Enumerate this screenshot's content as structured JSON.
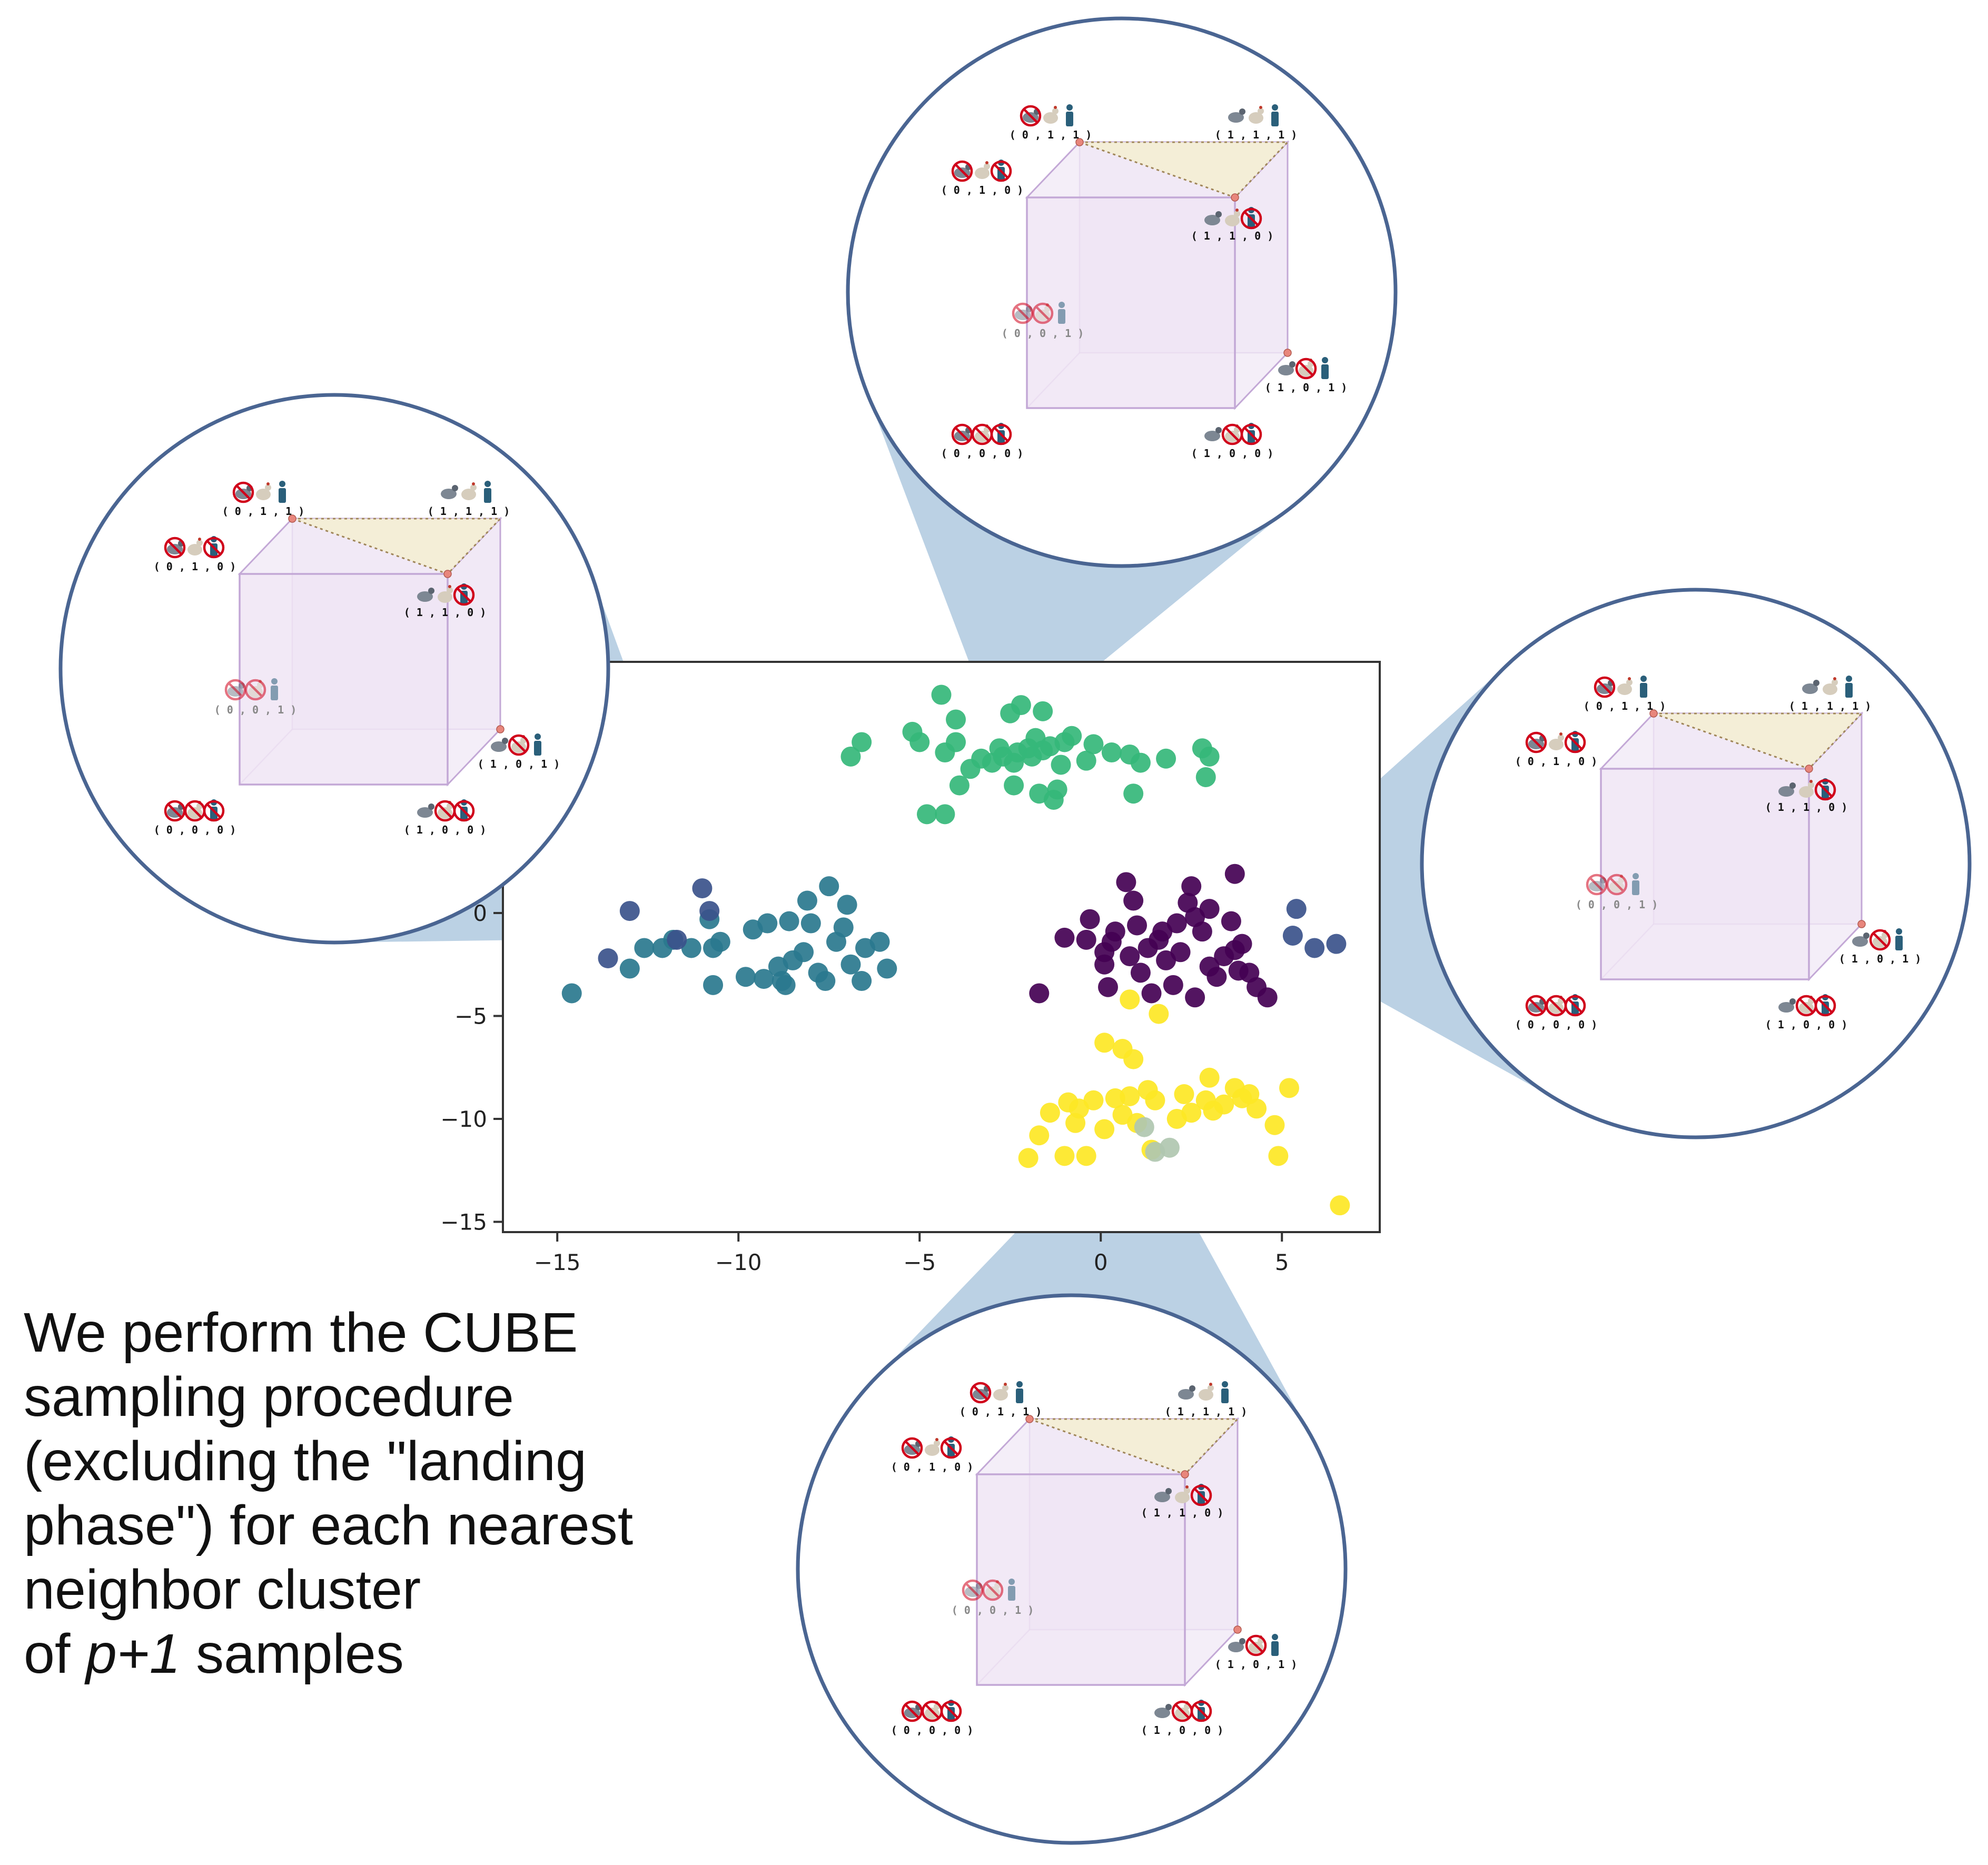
{
  "chart_data": {
    "type": "scatter",
    "title": "",
    "xlabel": "",
    "ylabel": "",
    "xlim": [
      -16.5,
      7.7
    ],
    "ylim": [
      -15.5,
      12.2
    ],
    "xticks": [
      -15,
      -10,
      -5,
      0,
      5
    ],
    "xtick_labels": [
      "−15",
      "−10",
      "−5",
      "0",
      "5"
    ],
    "yticks": [
      -15,
      -10,
      -5,
      0
    ],
    "ytick_labels": [
      "−15",
      "−10",
      "−5",
      "0"
    ],
    "grid": false,
    "legend": "none",
    "series": [
      {
        "color": "#2a788e",
        "points": [
          [
            -14.6,
            -3.9
          ],
          [
            -13,
            -2.7
          ],
          [
            -12.6,
            -1.7
          ],
          [
            -12.1,
            -1.7
          ],
          [
            -11.8,
            -1.3
          ],
          [
            -11.3,
            -1.7
          ],
          [
            -10.7,
            -3.5
          ],
          [
            -10.7,
            -1.7
          ],
          [
            -10.5,
            -1.4
          ],
          [
            -9.8,
            -3.1
          ],
          [
            -9.6,
            -0.8
          ],
          [
            -9.3,
            -3.2
          ],
          [
            -9.2,
            -0.5
          ],
          [
            -8.8,
            -3.3
          ],
          [
            -8.7,
            -3.5
          ],
          [
            -8.6,
            -0.4
          ],
          [
            -8.5,
            -2.3
          ],
          [
            -8.2,
            -1.9
          ],
          [
            -8.1,
            0.6
          ],
          [
            -8.0,
            -0.5
          ],
          [
            -7.8,
            -2.9
          ],
          [
            -7.6,
            -3.3
          ],
          [
            -7.5,
            1.3
          ],
          [
            -7.3,
            -1.4
          ],
          [
            -7.1,
            -0.7
          ],
          [
            -7.0,
            0.4
          ],
          [
            -6.9,
            -2.5
          ],
          [
            -6.6,
            -3.3
          ],
          [
            -6.5,
            -1.7
          ],
          [
            -6.1,
            -1.4
          ],
          [
            -5.9,
            -2.7
          ],
          [
            -10.8,
            -0.3
          ],
          [
            -8.9,
            -2.6
          ]
        ]
      },
      {
        "color": "#3b528b",
        "points": [
          [
            -13,
            0.1
          ],
          [
            -11,
            1.2
          ],
          [
            -10.8,
            0.1
          ],
          [
            -11.7,
            -1.3
          ],
          [
            -13.6,
            -2.2
          ],
          [
            6.5,
            -1.5
          ],
          [
            5.9,
            -1.7
          ],
          [
            5.3,
            -1.1
          ],
          [
            5.4,
            0.2
          ]
        ]
      },
      {
        "color": "#35b779",
        "points": [
          [
            -4.4,
            10.6
          ],
          [
            -4.0,
            9.4
          ],
          [
            -4.0,
            8.3
          ],
          [
            -4.3,
            7.8
          ],
          [
            -5.0,
            8.3
          ],
          [
            -5.2,
            8.8
          ],
          [
            -4.8,
            4.8
          ],
          [
            -4.3,
            4.8
          ],
          [
            -3.9,
            6.2
          ],
          [
            -3.6,
            7.0
          ],
          [
            -3.3,
            7.5
          ],
          [
            -3.0,
            7.3
          ],
          [
            -2.7,
            7.6
          ],
          [
            -2.4,
            7.3
          ],
          [
            -2.3,
            7.8
          ],
          [
            -2.0,
            8.0
          ],
          [
            -1.9,
            7.6
          ],
          [
            -1.6,
            7.9
          ],
          [
            -1.4,
            8.1
          ],
          [
            -1.0,
            8.3
          ],
          [
            -1.2,
            6.0
          ],
          [
            -1.3,
            5.5
          ],
          [
            -1.7,
            5.8
          ],
          [
            -0.4,
            7.4
          ],
          [
            -0.2,
            8.2
          ],
          [
            0.3,
            7.8
          ],
          [
            0.8,
            7.7
          ],
          [
            1.1,
            7.3
          ],
          [
            1.8,
            7.5
          ],
          [
            2.8,
            8.0
          ],
          [
            3.0,
            7.6
          ],
          [
            2.9,
            6.6
          ],
          [
            0.9,
            5.8
          ],
          [
            -1.1,
            7.2
          ],
          [
            -1.8,
            8.5
          ],
          [
            -2.5,
            9.7
          ],
          [
            -6.6,
            8.3
          ],
          [
            -6.9,
            7.6
          ],
          [
            -2.8,
            8.0
          ],
          [
            -2.4,
            6.2
          ],
          [
            -2.2,
            10.1
          ],
          [
            -1.6,
            9.8
          ],
          [
            -0.8,
            8.6
          ]
        ]
      },
      {
        "color": "#440154",
        "points": [
          [
            -1.0,
            -1.2
          ],
          [
            -0.4,
            -1.3
          ],
          [
            0.1,
            -1.9
          ],
          [
            0.2,
            -3.6
          ],
          [
            -1.7,
            -3.9
          ],
          [
            -0.3,
            -0.3
          ],
          [
            0.4,
            -0.9
          ],
          [
            0.7,
            1.5
          ],
          [
            0.9,
            0.6
          ],
          [
            1.0,
            -0.6
          ],
          [
            1.3,
            -1.7
          ],
          [
            1.4,
            -3.9
          ],
          [
            1.7,
            -0.9
          ],
          [
            1.8,
            -2.3
          ],
          [
            2.2,
            -1.9
          ],
          [
            2.4,
            0.5
          ],
          [
            2.6,
            -0.2
          ],
          [
            2.8,
            -0.9
          ],
          [
            3.0,
            -2.6
          ],
          [
            3.2,
            -3.1
          ],
          [
            3.4,
            -2.1
          ],
          [
            3.6,
            -0.4
          ],
          [
            3.7,
            -1.8
          ],
          [
            3.8,
            -2.8
          ],
          [
            3.9,
            -1.5
          ],
          [
            4.1,
            -2.9
          ],
          [
            4.3,
            -3.6
          ],
          [
            4.6,
            -4.1
          ],
          [
            2.0,
            -3.5
          ],
          [
            2.6,
            -4.1
          ],
          [
            1.1,
            -2.9
          ],
          [
            0.1,
            -2.5
          ],
          [
            0.8,
            -2.1
          ],
          [
            2.1,
            -0.5
          ],
          [
            2.5,
            1.3
          ],
          [
            3.0,
            0.2
          ],
          [
            3.7,
            1.9
          ],
          [
            1.6,
            -1.3
          ],
          [
            0.3,
            -1.4
          ]
        ]
      },
      {
        "color": "#fde725",
        "points": [
          [
            0.1,
            -6.3
          ],
          [
            0.6,
            -6.6
          ],
          [
            0.9,
            -7.1
          ],
          [
            1.3,
            -8.6
          ],
          [
            1.5,
            -9.1
          ],
          [
            0.8,
            -8.9
          ],
          [
            0.4,
            -9.0
          ],
          [
            -0.2,
            -9.1
          ],
          [
            -0.6,
            -9.5
          ],
          [
            -0.9,
            -9.2
          ],
          [
            -1.4,
            -9.7
          ],
          [
            -1.7,
            -10.8
          ],
          [
            -0.7,
            -10.2
          ],
          [
            0.1,
            -10.5
          ],
          [
            0.6,
            -9.8
          ],
          [
            1.0,
            -10.2
          ],
          [
            2.3,
            -8.8
          ],
          [
            2.5,
            -9.7
          ],
          [
            2.9,
            -9.1
          ],
          [
            3.1,
            -9.6
          ],
          [
            3.4,
            -9.3
          ],
          [
            3.7,
            -8.5
          ],
          [
            3.9,
            -9.0
          ],
          [
            4.3,
            -9.5
          ],
          [
            4.8,
            -10.3
          ],
          [
            5.2,
            -8.5
          ],
          [
            4.9,
            -11.8
          ],
          [
            6.6,
            -14.2
          ],
          [
            -1.0,
            -11.8
          ],
          [
            -0.4,
            -11.8
          ],
          [
            -2.0,
            -11.9
          ],
          [
            1.4,
            -11.5
          ],
          [
            3.0,
            -8.0
          ],
          [
            2.1,
            -10.0
          ],
          [
            4.1,
            -8.8
          ],
          [
            0.8,
            -4.2
          ],
          [
            1.6,
            -4.9
          ]
        ]
      },
      {
        "color": "#b0c7b0",
        "points": [
          [
            1.2,
            -10.4
          ],
          [
            1.5,
            -11.6
          ],
          [
            1.9,
            -11.4
          ]
        ]
      }
    ]
  },
  "zoom_cubes": [
    {
      "corners": [
        {
          "bits": [
            0,
            0,
            1
          ],
          "label": "( 0 , 0 , 1 )",
          "excluded": [
            1,
            2
          ]
        },
        {
          "bits": [
            0,
            1,
            1
          ],
          "label": "( 0 , 1 , 1 )",
          "excluded": [
            1
          ]
        },
        {
          "bits": [
            1,
            1,
            1
          ],
          "label": "( 1 , 1 , 1 )",
          "excluded": []
        },
        {
          "bits": [
            0,
            1,
            0
          ],
          "label": "( 0 , 1 , 0 )",
          "excluded": [
            1,
            3
          ]
        },
        {
          "bits": [
            1,
            1,
            0
          ],
          "label": "( 1 , 1 , 0 )",
          "excluded": [
            3
          ]
        },
        {
          "bits": [
            1,
            0,
            1
          ],
          "label": "( 1 , 0 , 1 )",
          "excluded": [
            2
          ]
        },
        {
          "bits": [
            0,
            0,
            0
          ],
          "label": "( 0 , 0 , 0 )",
          "excluded": [
            1,
            2,
            3
          ]
        },
        {
          "bits": [
            1,
            0,
            0
          ],
          "label": "( 1 , 0 , 0 )",
          "excluded": [
            2,
            3
          ]
        }
      ]
    },
    {
      "corners": [
        {
          "bits": [
            0,
            0,
            1
          ],
          "label": "( 0 , 0 , 1 )",
          "excluded": [
            1,
            2
          ]
        },
        {
          "bits": [
            0,
            1,
            1
          ],
          "label": "( 0 , 1 , 1 )",
          "excluded": [
            1
          ]
        },
        {
          "bits": [
            1,
            1,
            1
          ],
          "label": "( 1 , 1 , 1 )",
          "excluded": []
        },
        {
          "bits": [
            0,
            1,
            0
          ],
          "label": "( 0 , 1 , 0 )",
          "excluded": [
            1,
            3
          ]
        },
        {
          "bits": [
            1,
            1,
            0
          ],
          "label": "( 1 , 1 , 0 )",
          "excluded": [
            3
          ]
        },
        {
          "bits": [
            1,
            0,
            1
          ],
          "label": "( 1 , 0 , 1 )",
          "excluded": [
            2
          ]
        },
        {
          "bits": [
            0,
            0,
            0
          ],
          "label": "( 0 , 0 , 0 )",
          "excluded": [
            1,
            2,
            3
          ]
        },
        {
          "bits": [
            1,
            0,
            0
          ],
          "label": "( 1 , 0 , 0 )",
          "excluded": [
            2,
            3
          ]
        }
      ]
    },
    {
      "corners": [
        {
          "bits": [
            0,
            0,
            1
          ],
          "label": "( 0 , 0 , 1 )",
          "excluded": [
            1,
            2
          ]
        },
        {
          "bits": [
            0,
            1,
            1
          ],
          "label": "( 0 , 1 , 1 )",
          "excluded": [
            1
          ]
        },
        {
          "bits": [
            1,
            1,
            1
          ],
          "label": "( 1 , 1 , 1 )",
          "excluded": []
        },
        {
          "bits": [
            0,
            1,
            0
          ],
          "label": "( 0 , 1 , 0 )",
          "excluded": [
            1,
            3
          ]
        },
        {
          "bits": [
            1,
            1,
            0
          ],
          "label": "( 1 , 1 , 0 )",
          "excluded": [
            3
          ]
        },
        {
          "bits": [
            1,
            0,
            1
          ],
          "label": "( 1 , 0 , 1 )",
          "excluded": [
            2
          ]
        },
        {
          "bits": [
            0,
            0,
            0
          ],
          "label": "( 0 , 0 , 0 )",
          "excluded": [
            1,
            2,
            3
          ]
        },
        {
          "bits": [
            1,
            0,
            0
          ],
          "label": "( 1 , 0 , 0 )",
          "excluded": [
            2,
            3
          ]
        }
      ]
    },
    {
      "corners": [
        {
          "bits": [
            0,
            0,
            1
          ],
          "label": "( 0 , 0 , 1 )",
          "excluded": [
            1,
            2
          ]
        },
        {
          "bits": [
            0,
            1,
            1
          ],
          "label": "( 0 , 1 , 1 )",
          "excluded": [
            1
          ]
        },
        {
          "bits": [
            1,
            1,
            1
          ],
          "label": "( 1 , 1 , 1 )",
          "excluded": []
        },
        {
          "bits": [
            0,
            1,
            0
          ],
          "label": "( 0 , 1 , 0 )",
          "excluded": [
            1,
            3
          ]
        },
        {
          "bits": [
            1,
            1,
            0
          ],
          "label": "( 1 , 1 , 0 )",
          "excluded": [
            3
          ]
        },
        {
          "bits": [
            1,
            0,
            1
          ],
          "label": "( 1 , 0 , 1 )",
          "excluded": [
            2
          ]
        },
        {
          "bits": [
            0,
            0,
            0
          ],
          "label": "( 0 , 0 , 0 )",
          "excluded": [
            1,
            2,
            3
          ]
        },
        {
          "bits": [
            1,
            0,
            0
          ],
          "label": "( 1 , 0 , 0 )",
          "excluded": [
            2,
            3
          ]
        }
      ]
    }
  ],
  "caption": {
    "lines": [
      "We perform the CUBE",
      "sampling procedure",
      "(excluding the \"landing",
      "phase\") for each nearest",
      "neighbor cluster"
    ],
    "last_line_prefix": "of ",
    "last_line_italic": "p+1",
    "last_line_suffix": " samples"
  },
  "colors": {
    "circle_stroke": "#4a6592",
    "callout_fill": "#a8c4dc",
    "cube_fill": "#ede2f3",
    "cube_edge": "#c3a8d6",
    "triangle_fill": "#f3eed5",
    "triangle_edge": "#a0865a",
    "vertex_dot": "#e8867c",
    "prohibited": "#d0021b",
    "pigeon": "#7d8793",
    "chicken": "#d6cdbd",
    "person": "#2a5f7a"
  }
}
